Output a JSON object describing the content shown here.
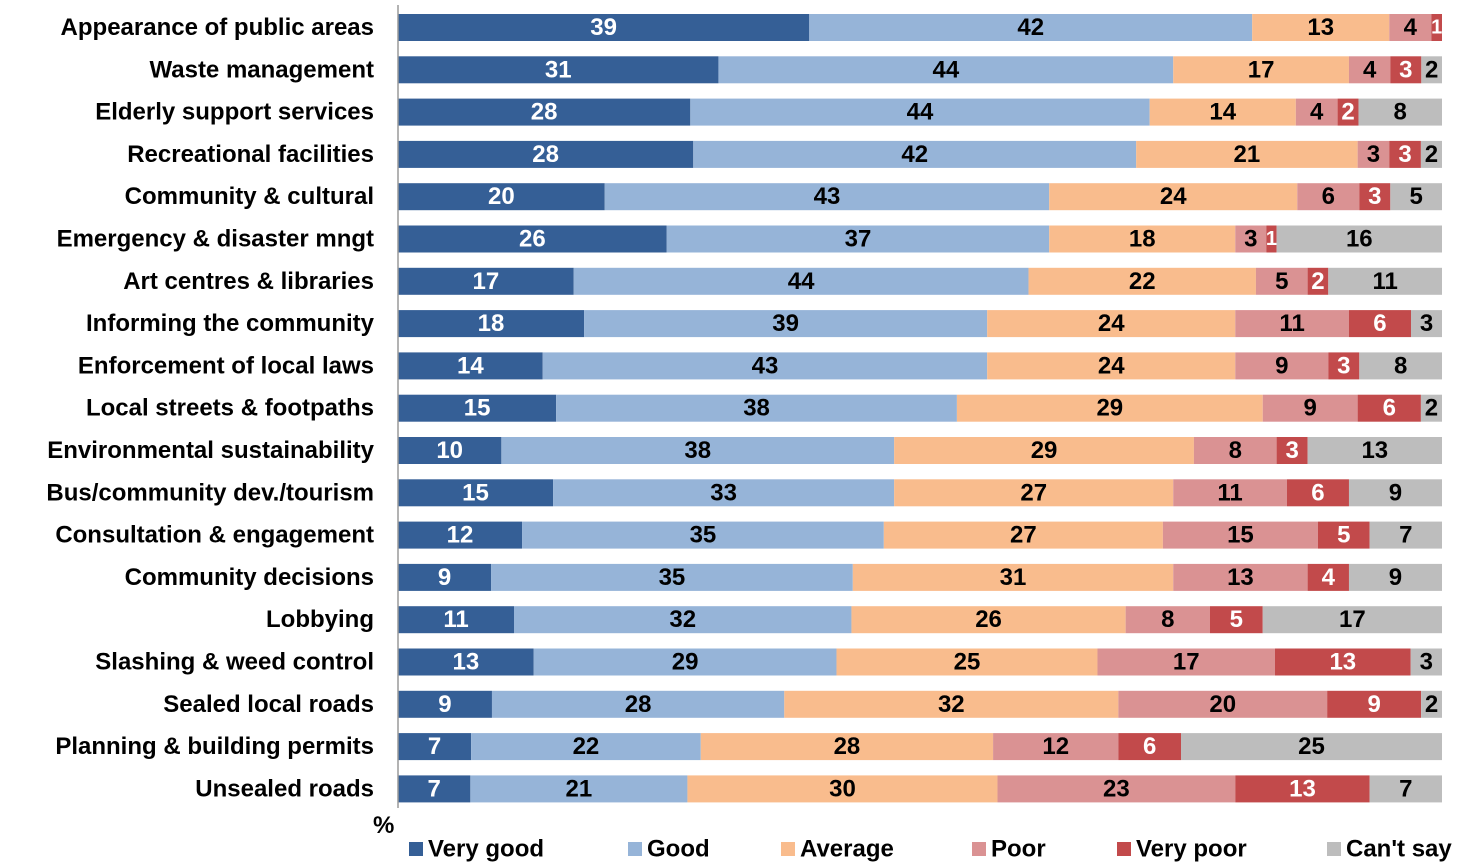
{
  "chart_data": {
    "type": "bar",
    "orientation": "horizontal",
    "stacked": true,
    "title": "",
    "xlabel": "%",
    "ylabel": "",
    "xlim": [
      0,
      100
    ],
    "grid": false,
    "legend": "bottom",
    "categories": [
      "Appearance of public areas",
      "Waste management",
      "Elderly support services",
      "Recreational facilities",
      "Community & cultural",
      "Emergency & disaster mngt",
      "Art centres & libraries",
      "Informing the community",
      "Enforcement of local laws",
      "Local streets & footpaths",
      "Environmental sustainability",
      "Bus/community dev./tourism",
      "Consultation & engagement",
      "Community decisions",
      "Lobbying",
      "Slashing & weed control",
      "Sealed local roads",
      "Planning & building permits",
      "Unsealed roads"
    ],
    "series": [
      {
        "name": "Very good",
        "color": "#355f96",
        "label_color": "#ffffff",
        "values": [
          39,
          31,
          28,
          28,
          20,
          26,
          17,
          18,
          14,
          15,
          10,
          15,
          12,
          9,
          11,
          13,
          9,
          7,
          7
        ]
      },
      {
        "name": "Good",
        "color": "#96b4d8",
        "label_color": "#000000",
        "values": [
          42,
          44,
          44,
          42,
          43,
          37,
          44,
          39,
          43,
          38,
          38,
          33,
          35,
          35,
          32,
          29,
          28,
          22,
          21
        ]
      },
      {
        "name": "Average",
        "color": "#f9bc8d",
        "label_color": "#000000",
        "values": [
          13,
          17,
          14,
          21,
          24,
          18,
          22,
          24,
          24,
          29,
          29,
          27,
          27,
          31,
          26,
          25,
          32,
          28,
          30
        ]
      },
      {
        "name": "Poor",
        "color": "#da9293",
        "label_color": "#000000",
        "values": [
          4,
          4,
          4,
          3,
          6,
          3,
          5,
          11,
          9,
          9,
          8,
          11,
          15,
          13,
          8,
          17,
          20,
          12,
          23
        ]
      },
      {
        "name": "Very poor",
        "color": "#c24a4b",
        "label_color": "#ffffff",
        "values": [
          1,
          3,
          2,
          3,
          3,
          1,
          2,
          6,
          3,
          6,
          3,
          6,
          5,
          4,
          5,
          13,
          9,
          6,
          13
        ]
      },
      {
        "name": "Can't say",
        "color": "#bdbdbd",
        "label_color": "#000000",
        "values": [
          0,
          2,
          8,
          2,
          5,
          16,
          11,
          3,
          8,
          2,
          13,
          9,
          7,
          9,
          17,
          3,
          2,
          25,
          7
        ]
      }
    ]
  }
}
